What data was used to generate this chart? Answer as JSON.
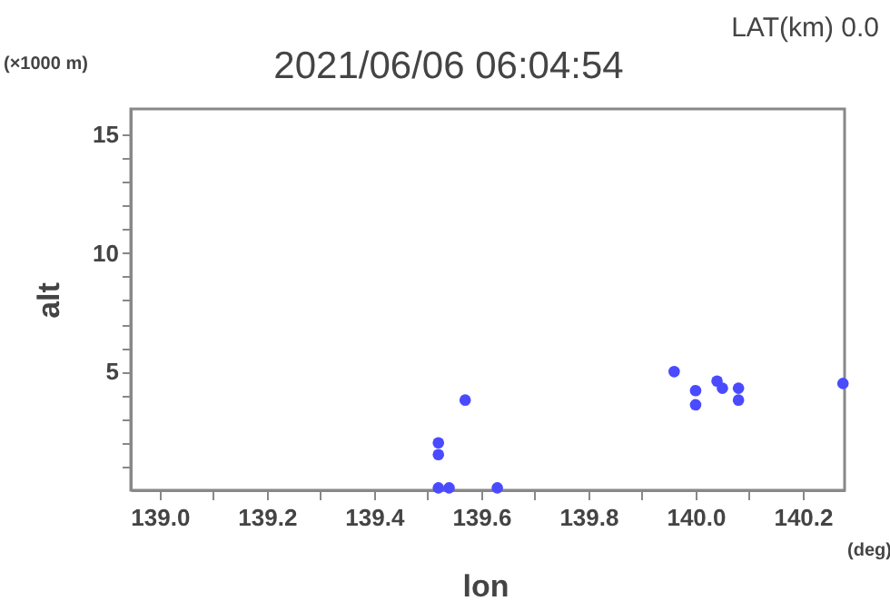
{
  "chart_data": {
    "type": "scatter",
    "title": "2021/06/06 06:04:54",
    "xlabel": "lon",
    "ylabel": "alt",
    "annotations": [
      "LAT(km) 0.0",
      "(×1000 m)",
      "(deg)"
    ],
    "xlim": [
      138.946,
      140.278
    ],
    "ylim": [
      0,
      16.07
    ],
    "xticks": [
      {
        "value": 139.0,
        "label": "139.0"
      },
      {
        "value": 139.1,
        "label": null
      },
      {
        "value": 139.2,
        "label": "139.2"
      },
      {
        "value": 139.3,
        "label": null
      },
      {
        "value": 139.4,
        "label": "139.4"
      },
      {
        "value": 139.5,
        "label": null
      },
      {
        "value": 139.6,
        "label": "139.6"
      },
      {
        "value": 139.7,
        "label": null
      },
      {
        "value": 139.8,
        "label": "139.8"
      },
      {
        "value": 139.9,
        "label": null
      },
      {
        "value": 140.0,
        "label": "140.0"
      },
      {
        "value": 140.1,
        "label": null
      },
      {
        "value": 140.2,
        "label": "140.2"
      }
    ],
    "yticks": [
      {
        "value": 1,
        "label": null
      },
      {
        "value": 2,
        "label": null
      },
      {
        "value": 3,
        "label": null
      },
      {
        "value": 4,
        "label": null
      },
      5,
      {
        "value": 6,
        "label": null
      },
      {
        "value": 7,
        "label": null
      },
      {
        "value": 8,
        "label": null
      },
      {
        "value": 9,
        "label": null
      },
      10,
      {
        "value": 11,
        "label": null
      },
      {
        "value": 12,
        "label": null
      },
      {
        "value": 13,
        "label": null
      },
      {
        "value": 14,
        "label": null
      },
      15
    ],
    "grid": false,
    "marker": "circle",
    "series": [
      {
        "color": "#4a4aff",
        "x": [
          139.52,
          139.52,
          139.57,
          139.52,
          139.54,
          139.63,
          139.96,
          140.0,
          140.0,
          140.04,
          140.05,
          140.08,
          140.08,
          140.275
        ],
        "values": [
          2.0,
          1.5,
          3.8,
          0.1,
          0.1,
          0.1,
          5.0,
          4.2,
          3.6,
          4.6,
          4.3,
          4.3,
          3.8,
          4.5
        ]
      }
    ]
  }
}
